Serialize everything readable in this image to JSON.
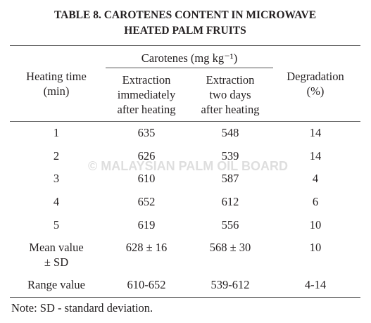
{
  "title": [
    "TABLE 8. CAROTENES CONTENT IN MICROWAVE",
    "HEATED PALM FRUITS"
  ],
  "table": {
    "group_header": "Carotenes (mg kg⁻¹)",
    "headers": [
      [
        "Heating time",
        "(min)"
      ],
      [
        "Extraction",
        "immediately",
        "after heating"
      ],
      [
        "Extraction",
        "two days",
        "after heating"
      ],
      [
        "Degradation",
        "(%)"
      ]
    ],
    "rows": [
      [
        [
          "1"
        ],
        [
          "635"
        ],
        [
          "548"
        ],
        [
          "14"
        ]
      ],
      [
        [
          "2"
        ],
        [
          "626"
        ],
        [
          "539"
        ],
        [
          "14"
        ]
      ],
      [
        [
          "3"
        ],
        [
          "610"
        ],
        [
          "587"
        ],
        [
          "4"
        ]
      ],
      [
        [
          "4"
        ],
        [
          "652"
        ],
        [
          "612"
        ],
        [
          "6"
        ]
      ],
      [
        [
          "5"
        ],
        [
          "619"
        ],
        [
          "556"
        ],
        [
          "10"
        ]
      ],
      [
        [
          "Mean value",
          "± SD"
        ],
        [
          "628 ± 16"
        ],
        [
          "568 ± 30"
        ],
        [
          "10"
        ]
      ],
      [
        [
          "Range value"
        ],
        [
          "610-652"
        ],
        [
          "539-612"
        ],
        [
          "4-14"
        ]
      ]
    ]
  },
  "watermark": "© MALAYSIAN PALM OIL BOARD",
  "note": "Note: SD - standard deviation."
}
